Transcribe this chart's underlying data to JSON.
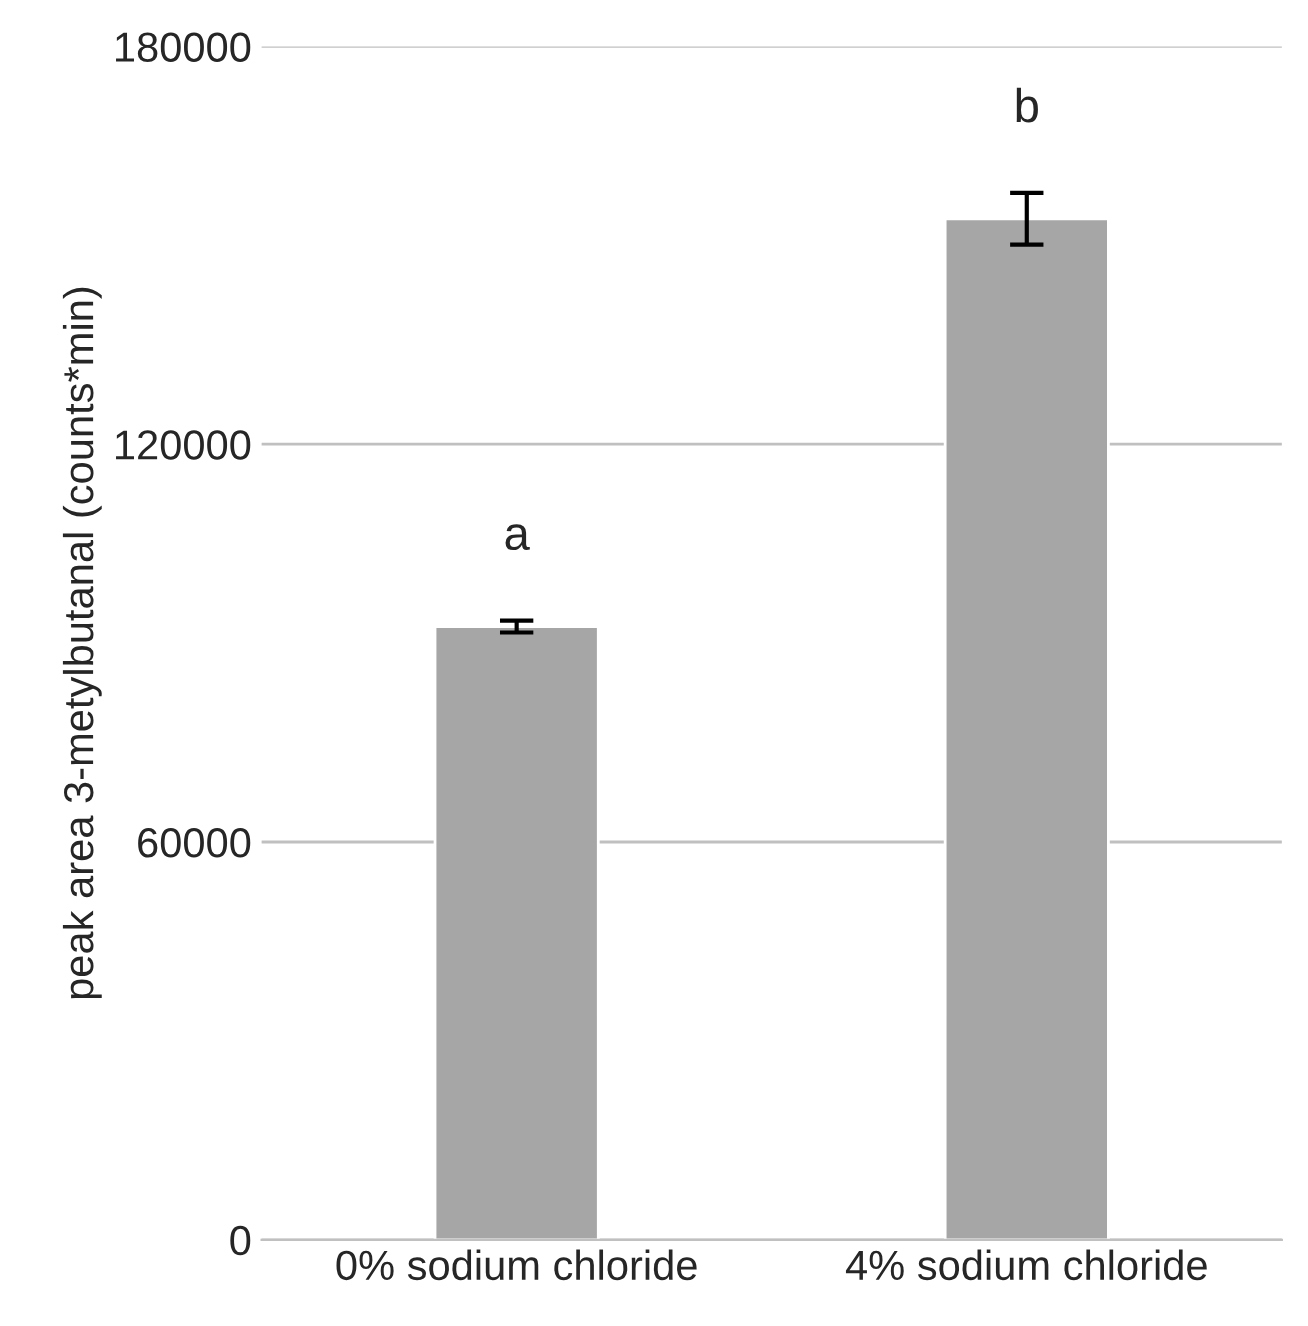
{
  "chart_data": {
    "type": "bar",
    "ylabel": "peak area 3-metylbutanal (counts*min)",
    "categories": [
      "0% sodium chloride",
      "4% sodium chloride"
    ],
    "values": [
      92500,
      154000
    ],
    "errors": [
      900,
      3900
    ],
    "color": "#a6a6a6",
    "ylim": [
      0,
      180000
    ],
    "yticks": [
      0,
      60000,
      120000,
      180000
    ],
    "grid": "y",
    "annotations": [
      "a",
      "b"
    ]
  }
}
